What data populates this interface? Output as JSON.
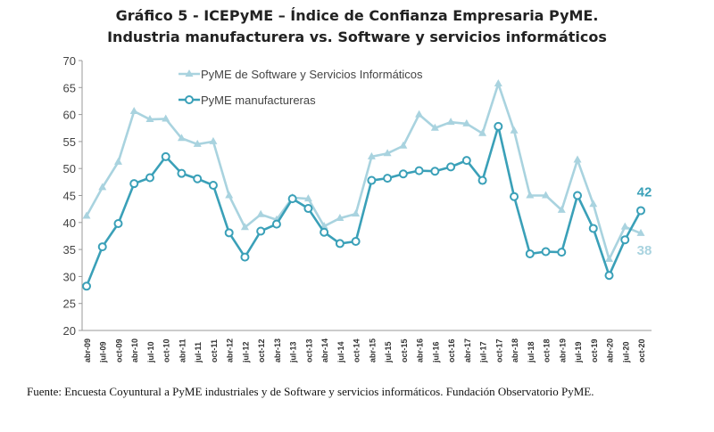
{
  "chart_data": {
    "type": "line",
    "title": "Gráfico 5 - ICEPyME – Índice de Confianza Empresaria PyME.",
    "subtitle": "Industria manufacturera vs. Software y servicios informáticos",
    "xlabel": "",
    "ylabel": "",
    "ylim": [
      20,
      70
    ],
    "yticks": [
      20,
      25,
      30,
      35,
      40,
      45,
      50,
      55,
      60,
      65,
      70
    ],
    "grid": false,
    "legend": "top-left",
    "categories": [
      "abr-09",
      "jul-09",
      "oct-09",
      "abr-10",
      "jul-10",
      "oct-10",
      "abr-11",
      "jul-11",
      "oct-11",
      "abr-12",
      "jul-12",
      "oct-12",
      "abr-13",
      "jul-13",
      "oct-13",
      "abr-14",
      "jul-14",
      "oct-14",
      "abr-15",
      "jul-15",
      "oct-15",
      "abr-16",
      "jul-16",
      "oct-16",
      "abr-17",
      "jul-17",
      "oct-17",
      "abr-18",
      "jul-18",
      "oct-18",
      "abr-19",
      "jul-19",
      "oct-19",
      "abr-20",
      "jul-20",
      "oct-20"
    ],
    "series": [
      {
        "name": "PyME de Software y Servicios Informáticos",
        "color": "#a9d3df",
        "marker": "triangle",
        "end_label": "38",
        "values": [
          41.2,
          46.5,
          51.2,
          60.6,
          59.1,
          59.2,
          55.6,
          54.5,
          55.0,
          45.0,
          39.1,
          41.5,
          40.5,
          44.6,
          44.4,
          39.3,
          40.8,
          41.6,
          52.2,
          52.8,
          54.2,
          60.0,
          57.5,
          58.6,
          58.3,
          56.5,
          65.7,
          57.0,
          45.0,
          45.0,
          42.3,
          51.6,
          43.4,
          33.2,
          39.2,
          38.0
        ]
      },
      {
        "name": "PyME manufactureras",
        "color": "#3aa0b8",
        "marker": "circle",
        "end_label": "42",
        "values": [
          28.2,
          35.5,
          39.8,
          47.2,
          48.3,
          52.2,
          49.1,
          48.1,
          46.9,
          38.1,
          33.6,
          38.4,
          39.7,
          44.4,
          42.6,
          38.2,
          36.1,
          36.5,
          47.8,
          48.2,
          49.0,
          49.6,
          49.5,
          50.3,
          51.5,
          47.8,
          57.8,
          44.8,
          34.2,
          34.6,
          34.5,
          45.0,
          38.9,
          30.2,
          36.8,
          42.2
        ]
      }
    ]
  },
  "source": "Fuente: Encuesta Coyuntural a PyME industriales y de Software y servicios informáticos. Fundación Observatorio PyME."
}
